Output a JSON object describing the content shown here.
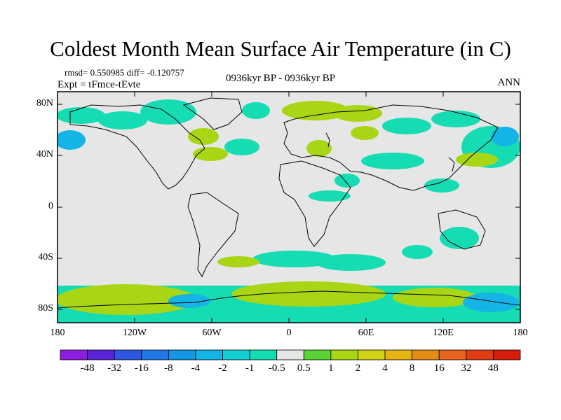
{
  "title": "Coldest Month Mean Surface Air Temperature (in C)",
  "stats": "rmsd= 0.550985 diff= -0.120757",
  "experiment": "Expt = tFmce-tEvte",
  "period": "0936kyr BP - 0936kyr BP",
  "season": "ANN",
  "axes": {
    "lat_ticks": [
      "80N",
      "40N",
      "0",
      "40S",
      "80S"
    ],
    "lon_ticks": [
      "180",
      "120W",
      "60W",
      "0",
      "60E",
      "120E",
      "180"
    ]
  },
  "colorbar": {
    "colors": [
      "#8c1ee0",
      "#5a23d6",
      "#2e56e0",
      "#1f78e6",
      "#1497e2",
      "#14b4e6",
      "#14cfd2",
      "#16dcb4",
      "#e6e6e6",
      "#5ad232",
      "#a8d614",
      "#d2d214",
      "#e6b414",
      "#e68c14",
      "#e6641e",
      "#e23c14",
      "#d71e0a"
    ],
    "labels": [
      "-48",
      "-32",
      "-16",
      "-8",
      "-4",
      "-2",
      "-1",
      "-0.5",
      "0.5",
      "1",
      "2",
      "4",
      "8",
      "16",
      "32",
      "48"
    ]
  }
}
